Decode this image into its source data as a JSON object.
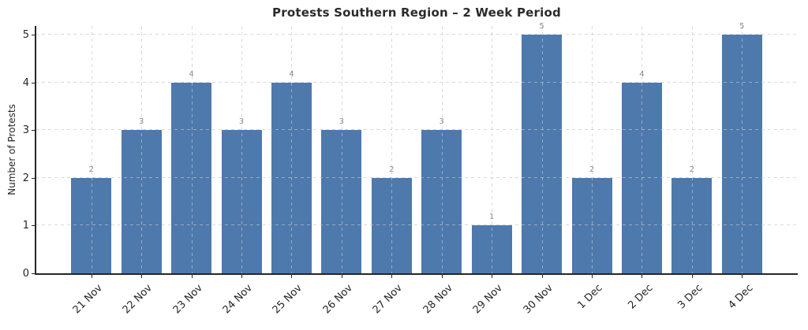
{
  "chart_data": {
    "type": "bar",
    "title": "Protests Southern Region – 2 Week Period",
    "xlabel": "",
    "ylabel": "Number of Protests",
    "categories": [
      "21 Nov",
      "22 Nov",
      "23 Nov",
      "24 Nov",
      "25 Nov",
      "26 Nov",
      "27 Nov",
      "28 Nov",
      "29 Nov",
      "30 Nov",
      "1 Dec",
      "2 Dec",
      "3 Dec",
      "4 Dec"
    ],
    "values": [
      2,
      3,
      4,
      3,
      4,
      3,
      2,
      3,
      1,
      5,
      2,
      4,
      2,
      5
    ],
    "value_labels": [
      "2",
      "3",
      "4",
      "3",
      "4",
      "3",
      "2",
      "3",
      "1",
      "5",
      "2",
      "4",
      "2",
      "5"
    ],
    "yticks": [
      0,
      1,
      2,
      3,
      4,
      5
    ],
    "ylim": [
      0,
      5.18
    ],
    "grid": true,
    "grid_style": "dashed",
    "legend": "none",
    "bar_color": "#4d79ad",
    "grid_color": "#c6c6c6",
    "axis_color": "#262626",
    "title_color": "#2b2b2b",
    "tick_label_color": "#262626",
    "value_label_color": "#8c8c8c",
    "background_color": "#ffffff"
  }
}
